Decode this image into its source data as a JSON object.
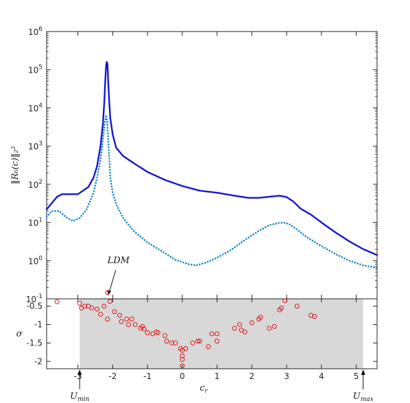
{
  "chart_data": [
    {
      "type": "line",
      "ylabel": "‖R₆(c)‖₂²",
      "yscale": "log",
      "ylim": [
        0.1,
        1000000
      ],
      "xlim": [
        -3.9,
        5.6
      ],
      "yticks": [
        {
          "value": 0.1,
          "base": "10",
          "exp": "-1"
        },
        {
          "value": 1,
          "base": "10",
          "exp": "0"
        },
        {
          "value": 10,
          "base": "10",
          "exp": "1"
        },
        {
          "value": 100,
          "base": "10",
          "exp": "2"
        },
        {
          "value": 1000,
          "base": "10",
          "exp": "3"
        },
        {
          "value": 10000,
          "base": "10",
          "exp": "4"
        },
        {
          "value": 100000,
          "base": "10",
          "exp": "5"
        },
        {
          "value": 1000000,
          "base": "10",
          "exp": "6"
        }
      ],
      "series": [
        {
          "style": "solid",
          "color": "#1515d6",
          "x": [
            -3.9,
            -3.75,
            -3.6,
            -3.45,
            -3.3,
            -3.0,
            -2.7,
            -2.55,
            -2.45,
            -2.35,
            -2.28,
            -2.24,
            -2.21,
            -2.19,
            -2.17,
            -2.15,
            -2.13,
            -2.1,
            -2.07,
            -2.0,
            -1.9,
            -1.7,
            -1.4,
            -1.0,
            -0.5,
            0.0,
            0.5,
            1.0,
            1.5,
            1.9,
            2.2,
            2.5,
            2.8,
            3.0,
            3.2,
            3.4,
            3.7,
            4.0,
            4.4,
            4.8,
            5.2,
            5.6
          ],
          "y": [
            22,
            32,
            47,
            55,
            55,
            55,
            85,
            150,
            300,
            1000,
            4000,
            15000,
            60000,
            130000,
            160000,
            140000,
            50000,
            15000,
            5500,
            2000,
            900,
            550,
            360,
            210,
            130,
            90,
            68,
            60,
            50,
            44,
            44,
            47,
            50,
            46,
            35,
            23,
            16,
            10,
            5.5,
            3.2,
            2.0,
            1.4
          ]
        },
        {
          "style": "dotted",
          "color": "#1287c4",
          "x": [
            -3.9,
            -3.75,
            -3.55,
            -3.35,
            -3.15,
            -2.95,
            -2.75,
            -2.55,
            -2.45,
            -2.35,
            -2.28,
            -2.23,
            -2.19,
            -2.16,
            -2.13,
            -2.1,
            -2.07,
            -2.0,
            -1.9,
            -1.7,
            -1.4,
            -1.0,
            -0.6,
            -0.2,
            0.2,
            0.4,
            0.7,
            1.0,
            1.4,
            1.8,
            2.2,
            2.5,
            2.8,
            2.95,
            3.1,
            3.3,
            3.6,
            4.0,
            4.4,
            4.8,
            5.2,
            5.6
          ],
          "y": [
            14,
            20,
            20,
            14,
            11,
            13,
            22,
            60,
            150,
            450,
            1500,
            3800,
            6500,
            4500,
            1500,
            500,
            150,
            60,
            30,
            13,
            6,
            3,
            1.8,
            1.05,
            0.8,
            0.75,
            0.9,
            1.2,
            1.9,
            3.5,
            6.0,
            8.5,
            9.8,
            9.8,
            8.8,
            6.5,
            4.0,
            2.4,
            1.5,
            1.0,
            0.75,
            0.65
          ]
        }
      ],
      "annotations": [
        {
          "text": "LDM",
          "x": -2.15
        }
      ]
    },
    {
      "type": "scatter",
      "xlabel": "c_r",
      "ylabel": "σ",
      "xlim": [
        -3.9,
        5.6
      ],
      "ylim": [
        -2.2,
        -0.3
      ],
      "xticks": [
        -3,
        -2,
        -1,
        0,
        1,
        2,
        3,
        4,
        5
      ],
      "yticks": [
        -0.5,
        -1,
        -1.5,
        -2
      ],
      "shaded_region": {
        "x": [
          -2.95,
          5.2
        ],
        "color": "#d8d8d8"
      },
      "marker": {
        "shape": "open-circle",
        "color": "#e01010"
      },
      "points": [
        [
          -3.6,
          -0.38
        ],
        [
          -2.95,
          -0.42
        ],
        [
          -2.9,
          -0.55
        ],
        [
          -2.8,
          -0.5
        ],
        [
          -2.7,
          -0.5
        ],
        [
          -2.6,
          -0.55
        ],
        [
          -2.45,
          -0.58
        ],
        [
          -2.35,
          -0.72
        ],
        [
          -2.25,
          -0.5
        ],
        [
          -2.15,
          -0.85
        ],
        [
          -2.15,
          -0.13
        ],
        [
          -2.08,
          -0.37
        ],
        [
          -1.95,
          -0.65
        ],
        [
          -1.8,
          -0.75
        ],
        [
          -1.75,
          -0.92
        ],
        [
          -1.6,
          -0.85
        ],
        [
          -1.55,
          -1.0
        ],
        [
          -1.45,
          -0.85
        ],
        [
          -1.35,
          -1.0
        ],
        [
          -1.2,
          -1.1
        ],
        [
          -1.15,
          -1.05
        ],
        [
          -1.1,
          -1.12
        ],
        [
          -1.0,
          -1.22
        ],
        [
          -0.85,
          -1.25
        ],
        [
          -0.75,
          -1.2
        ],
        [
          -0.7,
          -1.22
        ],
        [
          -0.5,
          -1.3
        ],
        [
          -0.45,
          -1.45
        ],
        [
          -0.3,
          -1.5
        ],
        [
          -0.2,
          -1.5
        ],
        [
          -0.05,
          -1.65
        ],
        [
          0.0,
          -1.7
        ],
        [
          0.0,
          -1.85
        ],
        [
          0.0,
          -1.95
        ],
        [
          0.0,
          -2.12
        ],
        [
          0.1,
          -1.65
        ],
        [
          0.3,
          -1.5
        ],
        [
          0.45,
          -1.45
        ],
        [
          0.5,
          -1.45
        ],
        [
          0.75,
          -1.6
        ],
        [
          0.85,
          -1.25
        ],
        [
          1.0,
          -1.25
        ],
        [
          1.0,
          -1.45
        ],
        [
          1.5,
          -1.1
        ],
        [
          1.65,
          -1.0
        ],
        [
          1.7,
          -1.15
        ],
        [
          1.8,
          -1.2
        ],
        [
          2.0,
          -0.95
        ],
        [
          2.2,
          -0.85
        ],
        [
          2.25,
          -0.8
        ],
        [
          2.5,
          -1.1
        ],
        [
          2.65,
          -1.05
        ],
        [
          2.8,
          -0.6
        ],
        [
          2.85,
          -0.55
        ],
        [
          2.95,
          -0.35
        ],
        [
          3.3,
          -0.5
        ],
        [
          3.7,
          -0.75
        ],
        [
          3.8,
          -0.78
        ]
      ],
      "annotations": [
        {
          "text": "U_min",
          "x": -2.95
        },
        {
          "text": "U_max",
          "x": 5.2
        }
      ]
    }
  ]
}
